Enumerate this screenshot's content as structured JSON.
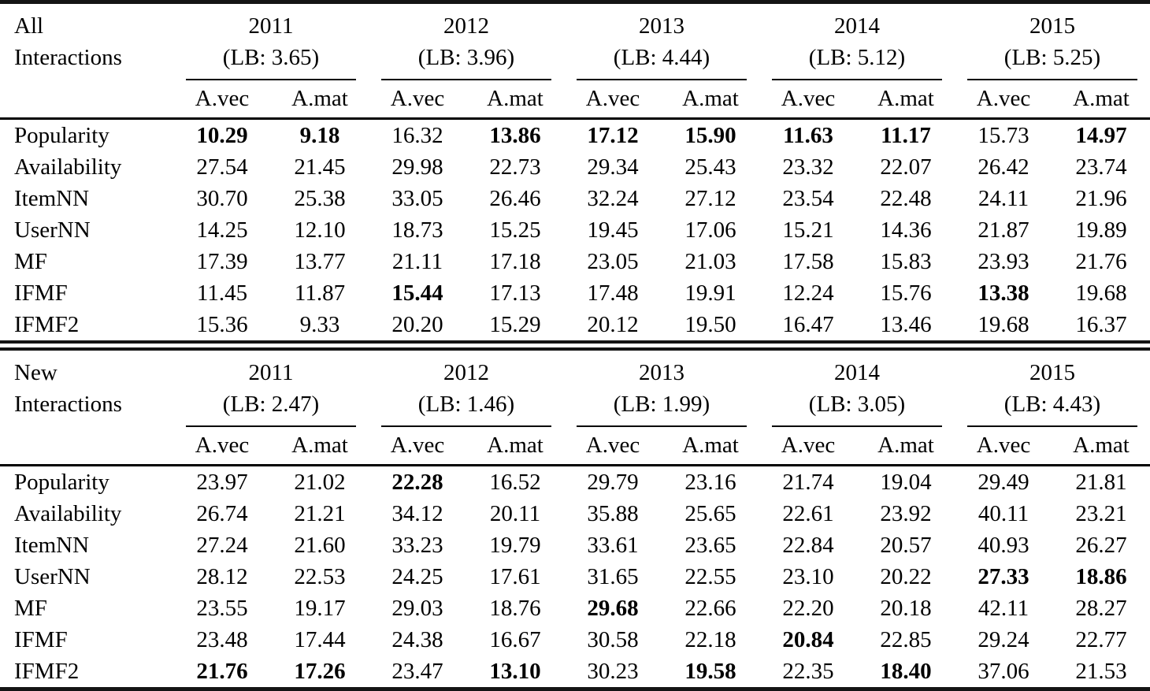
{
  "colors": {
    "text": "#000000",
    "background": "#ffffff",
    "rule": "#141414"
  },
  "table": {
    "sections": [
      {
        "id": "all-interactions",
        "label_lines": [
          "All",
          "Interactions"
        ],
        "years": [
          {
            "year": "2011",
            "lb": "(LB: 3.65)"
          },
          {
            "year": "2012",
            "lb": "(LB: 3.96)"
          },
          {
            "year": "2013",
            "lb": "(LB: 4.44)"
          },
          {
            "year": "2014",
            "lb": "(LB: 5.12)"
          },
          {
            "year": "2015",
            "lb": "(LB: 5.25)"
          }
        ],
        "subheaders": [
          "A.vec",
          "A.mat"
        ],
        "rows": [
          {
            "label": "Popularity",
            "values": [
              "10.29",
              "9.18",
              "16.32",
              "13.86",
              "17.12",
              "15.90",
              "11.63",
              "11.17",
              "15.73",
              "14.97"
            ],
            "bold": [
              1,
              1,
              0,
              1,
              1,
              1,
              1,
              1,
              0,
              1
            ]
          },
          {
            "label": "Availability",
            "values": [
              "27.54",
              "21.45",
              "29.98",
              "22.73",
              "29.34",
              "25.43",
              "23.32",
              "22.07",
              "26.42",
              "23.74"
            ],
            "bold": [
              0,
              0,
              0,
              0,
              0,
              0,
              0,
              0,
              0,
              0
            ]
          },
          {
            "label": "ItemNN",
            "values": [
              "30.70",
              "25.38",
              "33.05",
              "26.46",
              "32.24",
              "27.12",
              "23.54",
              "22.48",
              "24.11",
              "21.96"
            ],
            "bold": [
              0,
              0,
              0,
              0,
              0,
              0,
              0,
              0,
              0,
              0
            ]
          },
          {
            "label": "UserNN",
            "values": [
              "14.25",
              "12.10",
              "18.73",
              "15.25",
              "19.45",
              "17.06",
              "15.21",
              "14.36",
              "21.87",
              "19.89"
            ],
            "bold": [
              0,
              0,
              0,
              0,
              0,
              0,
              0,
              0,
              0,
              0
            ]
          },
          {
            "label": "MF",
            "values": [
              "17.39",
              "13.77",
              "21.11",
              "17.18",
              "23.05",
              "21.03",
              "17.58",
              "15.83",
              "23.93",
              "21.76"
            ],
            "bold": [
              0,
              0,
              0,
              0,
              0,
              0,
              0,
              0,
              0,
              0
            ]
          },
          {
            "label": "IFMF",
            "values": [
              "11.45",
              "11.87",
              "15.44",
              "17.13",
              "17.48",
              "19.91",
              "12.24",
              "15.76",
              "13.38",
              "19.68"
            ],
            "bold": [
              0,
              0,
              1,
              0,
              0,
              0,
              0,
              0,
              1,
              0
            ]
          },
          {
            "label": "IFMF2",
            "values": [
              "15.36",
              "9.33",
              "20.20",
              "15.29",
              "20.12",
              "19.50",
              "16.47",
              "13.46",
              "19.68",
              "16.37"
            ],
            "bold": [
              0,
              0,
              0,
              0,
              0,
              0,
              0,
              0,
              0,
              0
            ]
          }
        ]
      },
      {
        "id": "new-interactions",
        "label_lines": [
          "New",
          "Interactions"
        ],
        "years": [
          {
            "year": "2011",
            "lb": "(LB: 2.47)"
          },
          {
            "year": "2012",
            "lb": "(LB: 1.46)"
          },
          {
            "year": "2013",
            "lb": "(LB: 1.99)"
          },
          {
            "year": "2014",
            "lb": "(LB: 3.05)"
          },
          {
            "year": "2015",
            "lb": "(LB: 4.43)"
          }
        ],
        "subheaders": [
          "A.vec",
          "A.mat"
        ],
        "rows": [
          {
            "label": "Popularity",
            "values": [
              "23.97",
              "21.02",
              "22.28",
              "16.52",
              "29.79",
              "23.16",
              "21.74",
              "19.04",
              "29.49",
              "21.81"
            ],
            "bold": [
              0,
              0,
              1,
              0,
              0,
              0,
              0,
              0,
              0,
              0
            ]
          },
          {
            "label": "Availability",
            "values": [
              "26.74",
              "21.21",
              "34.12",
              "20.11",
              "35.88",
              "25.65",
              "22.61",
              "23.92",
              "40.11",
              "23.21"
            ],
            "bold": [
              0,
              0,
              0,
              0,
              0,
              0,
              0,
              0,
              0,
              0
            ]
          },
          {
            "label": "ItemNN",
            "values": [
              "27.24",
              "21.60",
              "33.23",
              "19.79",
              "33.61",
              "23.65",
              "22.84",
              "20.57",
              "40.93",
              "26.27"
            ],
            "bold": [
              0,
              0,
              0,
              0,
              0,
              0,
              0,
              0,
              0,
              0
            ]
          },
          {
            "label": "UserNN",
            "values": [
              "28.12",
              "22.53",
              "24.25",
              "17.61",
              "31.65",
              "22.55",
              "23.10",
              "20.22",
              "27.33",
              "18.86"
            ],
            "bold": [
              0,
              0,
              0,
              0,
              0,
              0,
              0,
              0,
              1,
              1
            ]
          },
          {
            "label": "MF",
            "values": [
              "23.55",
              "19.17",
              "29.03",
              "18.76",
              "29.68",
              "22.66",
              "22.20",
              "20.18",
              "42.11",
              "28.27"
            ],
            "bold": [
              0,
              0,
              0,
              0,
              1,
              0,
              0,
              0,
              0,
              0
            ]
          },
          {
            "label": "IFMF",
            "values": [
              "23.48",
              "17.44",
              "24.38",
              "16.67",
              "30.58",
              "22.18",
              "20.84",
              "22.85",
              "29.24",
              "22.77"
            ],
            "bold": [
              0,
              0,
              0,
              0,
              0,
              0,
              1,
              0,
              0,
              0
            ]
          },
          {
            "label": "IFMF2",
            "values": [
              "21.76",
              "17.26",
              "23.47",
              "13.10",
              "30.23",
              "19.58",
              "22.35",
              "18.40",
              "37.06",
              "21.53"
            ],
            "bold": [
              1,
              1,
              0,
              1,
              0,
              1,
              0,
              1,
              0,
              0
            ]
          }
        ]
      }
    ]
  }
}
